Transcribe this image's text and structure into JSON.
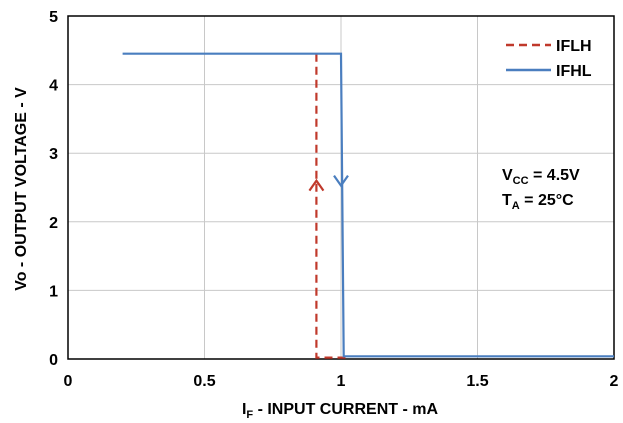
{
  "chart_data": {
    "type": "line",
    "xlabel": {
      "main": "I",
      "sub": "F",
      "rest": " - INPUT CURRENT - mA"
    },
    "ylabel": "Vo - OUTPUT VOLTAGE - V",
    "xlim": [
      0,
      2
    ],
    "ylim": [
      0,
      5
    ],
    "xticks": [
      "0",
      "0.5",
      "1",
      "1.5",
      "2"
    ],
    "yticks": [
      "0",
      "1",
      "2",
      "3",
      "4",
      "5"
    ],
    "grid": true,
    "legend_position": "top-right",
    "series": [
      {
        "name": "IFLH",
        "style": "dashed",
        "color": "#c0392b",
        "x": [
          0.91,
          0.91,
          1.02
        ],
        "y": [
          4.45,
          0.02,
          0.02
        ],
        "direction": "up"
      },
      {
        "name": "IFHL",
        "style": "solid",
        "color": "#4a7ebf",
        "x": [
          0.2,
          1.0,
          1.01,
          2.0
        ],
        "y": [
          4.45,
          4.45,
          0.04,
          0.04
        ],
        "direction": "down"
      }
    ],
    "annotations": [
      {
        "main": "V",
        "sub": "CC",
        "rest": " = 4.5V"
      },
      {
        "main": "T",
        "sub": "A",
        "rest": " = 25°C"
      }
    ]
  }
}
